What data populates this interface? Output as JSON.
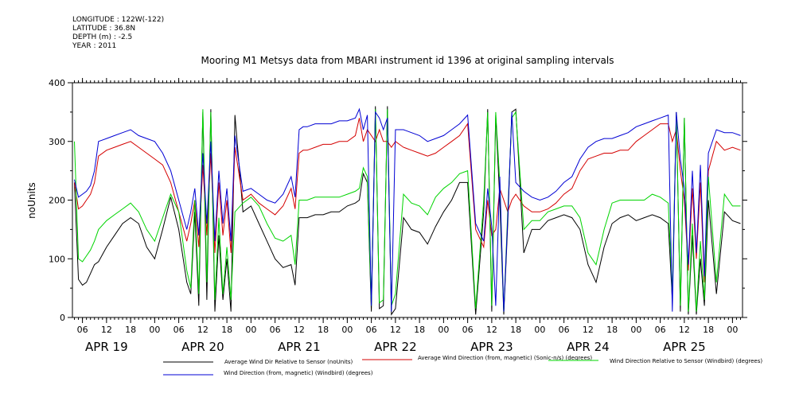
{
  "meta": {
    "longitude": "LONGITUDE : 122W(-122)",
    "latitude": "LATITUDE : 36.8N",
    "depth": "DEPTH (m) : -2.5",
    "year": "YEAR : 2011"
  },
  "chart_data": {
    "type": "line",
    "title": "Mooring M1 Metsys data from MBARI instrument id 1396 at original sampling intervals",
    "ylabel": "noUnits",
    "xlabel": "",
    "ylim": [
      0,
      400
    ],
    "yticks": [
      0,
      100,
      200,
      300,
      400
    ],
    "xlim": [
      3.5,
      170.5
    ],
    "x_unit": "hours since APR 19 00:00 (2011)",
    "hour_tick_labels": [
      "06",
      "12",
      "18",
      "00",
      "06",
      "12",
      "18",
      "00",
      "06",
      "12",
      "18",
      "00",
      "06",
      "12",
      "18",
      "00",
      "06",
      "12",
      "18",
      "00",
      "06",
      "12",
      "18",
      "00",
      "06",
      "12",
      "18",
      "00"
    ],
    "hour_tick_hours": [
      6,
      12,
      18,
      24,
      30,
      36,
      42,
      48,
      54,
      60,
      66,
      72,
      78,
      84,
      90,
      96,
      102,
      108,
      114,
      120,
      126,
      132,
      138,
      144,
      150,
      156,
      162,
      168
    ],
    "day_labels": [
      "APR 19",
      "APR 20",
      "APR 21",
      "APR 22",
      "APR 23",
      "APR 24",
      "APR 25"
    ],
    "day_label_hours": [
      12,
      36,
      60,
      84,
      108,
      132,
      156
    ],
    "grid": false,
    "legend_placement": "bottom",
    "series": [
      {
        "name": "Average Wind Dir Relative to Sensor (noUnits)",
        "color": "#000000",
        "x": [
          4,
          5,
          6,
          7,
          8,
          9,
          10,
          12,
          14,
          16,
          18,
          20,
          22,
          24,
          26,
          28,
          30,
          32,
          33,
          34,
          35,
          36,
          37,
          38,
          39,
          40,
          41,
          42,
          43,
          44,
          46,
          48,
          50,
          52,
          54,
          56,
          58,
          59,
          60,
          61,
          62,
          64,
          66,
          68,
          70,
          72,
          74,
          75,
          76,
          77,
          78,
          79,
          80,
          81,
          82,
          83,
          84,
          86,
          88,
          90,
          92,
          94,
          96,
          98,
          100,
          102,
          104,
          106,
          107,
          108,
          109,
          110,
          111,
          112,
          113,
          114,
          116,
          118,
          120,
          122,
          124,
          126,
          128,
          130,
          132,
          134,
          136,
          138,
          140,
          142,
          144,
          146,
          148,
          150,
          152,
          153,
          154,
          155,
          156,
          157,
          158,
          159,
          160,
          161,
          162,
          164,
          166,
          168,
          170
        ],
        "y": [
          230,
          65,
          55,
          60,
          75,
          90,
          95,
          120,
          140,
          160,
          170,
          160,
          120,
          100,
          150,
          205,
          150,
          60,
          40,
          180,
          20,
          350,
          30,
          355,
          10,
          140,
          30,
          100,
          10,
          345,
          180,
          190,
          160,
          130,
          100,
          85,
          90,
          55,
          170,
          170,
          170,
          175,
          175,
          180,
          180,
          190,
          195,
          200,
          245,
          230,
          10,
          360,
          15,
          20,
          360,
          5,
          15,
          170,
          150,
          145,
          125,
          155,
          180,
          200,
          230,
          230,
          5,
          180,
          355,
          10,
          345,
          200,
          5,
          160,
          350,
          355,
          110,
          150,
          150,
          165,
          170,
          175,
          170,
          150,
          90,
          60,
          120,
          160,
          170,
          175,
          165,
          170,
          175,
          170,
          160,
          30,
          350,
          10,
          340,
          5,
          140,
          5,
          100,
          20,
          200,
          40,
          180,
          165,
          160
        ]
      },
      {
        "name": "Average Wind Direction (from, magnetic) (Sonic-n/s) (degrees)",
        "color": "#d40000",
        "x": [
          4,
          5,
          6,
          7,
          8,
          9,
          10,
          12,
          14,
          16,
          18,
          20,
          22,
          24,
          26,
          28,
          30,
          32,
          33,
          34,
          35,
          36,
          37,
          38,
          39,
          40,
          41,
          42,
          43,
          44,
          46,
          48,
          50,
          52,
          54,
          56,
          58,
          59,
          60,
          61,
          62,
          64,
          66,
          68,
          70,
          72,
          74,
          75,
          76,
          77,
          78,
          79,
          80,
          81,
          82,
          83,
          84,
          86,
          88,
          90,
          92,
          94,
          96,
          98,
          100,
          102,
          104,
          106,
          107,
          108,
          109,
          110,
          111,
          112,
          113,
          114,
          116,
          118,
          120,
          122,
          124,
          126,
          128,
          130,
          132,
          134,
          136,
          138,
          140,
          142,
          144,
          146,
          148,
          150,
          152,
          153,
          154,
          155,
          156,
          157,
          158,
          159,
          160,
          161,
          162,
          164,
          166,
          168,
          170
        ],
        "y": [
          230,
          185,
          190,
          200,
          210,
          230,
          275,
          285,
          290,
          295,
          300,
          290,
          280,
          270,
          260,
          230,
          180,
          130,
          160,
          200,
          120,
          260,
          140,
          280,
          110,
          230,
          140,
          200,
          110,
          290,
          200,
          210,
          195,
          185,
          175,
          190,
          220,
          185,
          280,
          285,
          285,
          290,
          295,
          295,
          300,
          300,
          310,
          340,
          300,
          320,
          310,
          300,
          320,
          300,
          300,
          290,
          300,
          290,
          285,
          280,
          275,
          280,
          290,
          300,
          310,
          330,
          150,
          120,
          200,
          140,
          150,
          220,
          200,
          180,
          200,
          210,
          190,
          180,
          180,
          185,
          195,
          210,
          220,
          250,
          270,
          275,
          280,
          280,
          285,
          285,
          300,
          310,
          320,
          330,
          330,
          300,
          320,
          250,
          200,
          80,
          220,
          100,
          230,
          60,
          250,
          300,
          285,
          290,
          285
        ]
      },
      {
        "name": "Wind Direction Relative to Sensor (Windbird) (degrees)",
        "color": "#00d400",
        "x": [
          4,
          5,
          6,
          7,
          8,
          9,
          10,
          12,
          14,
          16,
          18,
          20,
          22,
          24,
          26,
          28,
          30,
          32,
          33,
          34,
          35,
          36,
          37,
          38,
          39,
          40,
          41,
          42,
          43,
          44,
          46,
          48,
          50,
          52,
          54,
          56,
          58,
          59,
          60,
          61,
          62,
          64,
          66,
          68,
          70,
          72,
          74,
          75,
          76,
          77,
          78,
          79,
          80,
          81,
          82,
          83,
          84,
          86,
          88,
          90,
          92,
          94,
          96,
          98,
          100,
          102,
          104,
          106,
          107,
          108,
          109,
          110,
          111,
          112,
          113,
          114,
          116,
          118,
          120,
          122,
          124,
          126,
          128,
          130,
          132,
          134,
          136,
          138,
          140,
          142,
          144,
          146,
          148,
          150,
          152,
          153,
          154,
          155,
          156,
          157,
          158,
          159,
          160,
          161,
          162,
          164,
          166,
          168,
          170
        ],
        "y": [
          300,
          100,
          95,
          105,
          115,
          130,
          150,
          165,
          175,
          185,
          195,
          180,
          150,
          130,
          170,
          210,
          180,
          80,
          50,
          200,
          40,
          355,
          60,
          350,
          30,
          170,
          40,
          120,
          30,
          180,
          195,
          205,
          190,
          160,
          135,
          130,
          140,
          90,
          200,
          200,
          200,
          205,
          205,
          205,
          205,
          210,
          215,
          220,
          255,
          240,
          20,
          355,
          25,
          30,
          355,
          20,
          40,
          210,
          195,
          190,
          175,
          205,
          220,
          230,
          245,
          250,
          15,
          200,
          350,
          20,
          350,
          230,
          10,
          180,
          340,
          350,
          150,
          165,
          165,
          180,
          185,
          190,
          190,
          170,
          110,
          90,
          150,
          195,
          200,
          200,
          200,
          200,
          210,
          205,
          195,
          40,
          345,
          20,
          340,
          10,
          160,
          10,
          130,
          30,
          240,
          60,
          210,
          190,
          190
        ]
      },
      {
        "name": "Wind Direction (from, magnetic) (Windbird) (degrees)",
        "color": "#0000d4",
        "x": [
          4,
          5,
          6,
          7,
          8,
          9,
          10,
          12,
          14,
          16,
          18,
          20,
          22,
          24,
          26,
          28,
          30,
          32,
          33,
          34,
          35,
          36,
          37,
          38,
          39,
          40,
          41,
          42,
          43,
          44,
          46,
          48,
          50,
          52,
          54,
          56,
          58,
          59,
          60,
          61,
          62,
          64,
          66,
          68,
          70,
          72,
          74,
          75,
          76,
          77,
          78,
          79,
          80,
          81,
          82,
          83,
          84,
          86,
          88,
          90,
          92,
          94,
          96,
          98,
          100,
          102,
          104,
          106,
          107,
          108,
          109,
          110,
          111,
          112,
          113,
          114,
          116,
          118,
          120,
          122,
          124,
          126,
          128,
          130,
          132,
          134,
          136,
          138,
          140,
          142,
          144,
          146,
          148,
          150,
          152,
          153,
          154,
          155,
          156,
          157,
          158,
          159,
          160,
          161,
          162,
          164,
          166,
          168,
          170
        ],
        "y": [
          235,
          205,
          210,
          215,
          225,
          250,
          300,
          305,
          310,
          315,
          320,
          310,
          305,
          300,
          280,
          250,
          200,
          150,
          180,
          220,
          140,
          280,
          160,
          300,
          130,
          250,
          160,
          220,
          130,
          310,
          215,
          220,
          210,
          200,
          195,
          210,
          240,
          205,
          320,
          325,
          325,
          330,
          330,
          330,
          335,
          335,
          340,
          355,
          320,
          345,
          20,
          350,
          340,
          320,
          340,
          10,
          320,
          320,
          315,
          310,
          300,
          305,
          310,
          320,
          330,
          345,
          160,
          130,
          220,
          155,
          20,
          240,
          10,
          170,
          350,
          230,
          215,
          205,
          200,
          205,
          215,
          230,
          240,
          270,
          290,
          300,
          305,
          305,
          310,
          315,
          325,
          330,
          335,
          340,
          345,
          10,
          350,
          270,
          220,
          90,
          250,
          110,
          260,
          70,
          280,
          320,
          315,
          315,
          310
        ]
      }
    ]
  }
}
